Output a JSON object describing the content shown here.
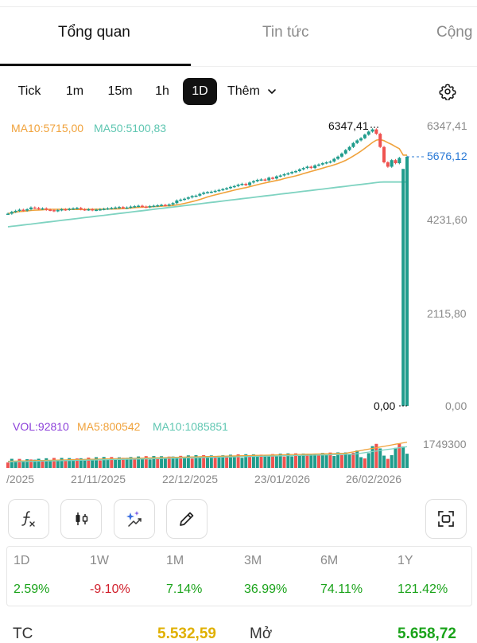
{
  "tabs": [
    "Tổng quan",
    "Tin tức",
    "Cộng"
  ],
  "timeframes": [
    "Tick",
    "1m",
    "15m",
    "1h",
    "1D"
  ],
  "more_label": "Thêm",
  "legend": {
    "ma10": "MA10:5715,00",
    "ma50": "MA50:5100,83",
    "vol": "VOL:92810",
    "vol_ma5": "MA5:800542",
    "vol_ma10": "MA10:1085851"
  },
  "colors": {
    "up": "#1f9c8c",
    "down": "#ef5350",
    "ma10": "#f0a23b",
    "ma50": "#7fd3c1",
    "price": "#2979d6",
    "vol": "#8b3fd9"
  },
  "axis": {
    "y_labels": [
      "6347,41",
      "4231,60",
      "2115,80",
      "0,00"
    ],
    "current_price": "5676,12",
    "max_marker": "6347,41",
    "min_marker": "0,00",
    "vol_max": "1749300",
    "x_labels": [
      "/2025",
      "21/11/2025",
      "22/12/2025",
      "23/01/2026",
      "26/02/2026"
    ]
  },
  "chart_data": {
    "type": "candlestick",
    "ylim": [
      0,
      6347.41
    ],
    "x_dates": [
      "21/11/2025",
      "22/12/2025",
      "23/01/2026",
      "26/02/2026"
    ],
    "close_series": [
      4380,
      4420,
      4445,
      4470,
      4450,
      4480,
      4520,
      4510,
      4490,
      4500,
      4470,
      4460,
      4440,
      4460,
      4480,
      4470,
      4490,
      4500,
      4510,
      4480,
      4470,
      4480,
      4460,
      4470,
      4480,
      4490,
      4500,
      4510,
      4520,
      4530,
      4510,
      4520,
      4540,
      4550,
      4560,
      4540,
      4530,
      4550,
      4560,
      4570,
      4580,
      4570,
      4590,
      4620,
      4680,
      4700,
      4720,
      4750,
      4780,
      4790,
      4830,
      4860,
      4870,
      4880,
      4900,
      4920,
      4940,
      4960,
      4990,
      5010,
      5040,
      5060,
      5030,
      5090,
      5120,
      5150,
      5160,
      5140,
      5200,
      5180,
      5230,
      5250,
      5280,
      5300,
      5330,
      5350,
      5390,
      5420,
      5450,
      5420,
      5480,
      5500,
      5530,
      5550,
      5570,
      5630,
      5680,
      5750,
      5830,
      5900,
      5990,
      6050,
      6100,
      6180,
      6250,
      6300,
      6200,
      5900,
      5550,
      5450,
      5600,
      5530,
      5650,
      0,
      5676.12
    ],
    "ma10_last": 5715.0,
    "ma50_last": 5100.83,
    "volume_ma5": 800542,
    "volume_ma10": 1085851,
    "last_volume": 92810,
    "vol_ylim": [
      0,
      1749300
    ]
  },
  "tools": [
    "function-icon",
    "candle-icon",
    "ai-sparkle-icon",
    "pencil-icon",
    "screenshot-icon"
  ],
  "performance": {
    "periods": [
      "1D",
      "1W",
      "1M",
      "3M",
      "6M",
      "1Y"
    ],
    "values": [
      "2.59%",
      "-9.10%",
      "7.14%",
      "36.99%",
      "74.11%",
      "121.42%"
    ]
  },
  "bottom": {
    "tc_label": "TC",
    "tc_value": "5.532,59",
    "open_label": "Mở",
    "open_value": "5.658,72"
  }
}
